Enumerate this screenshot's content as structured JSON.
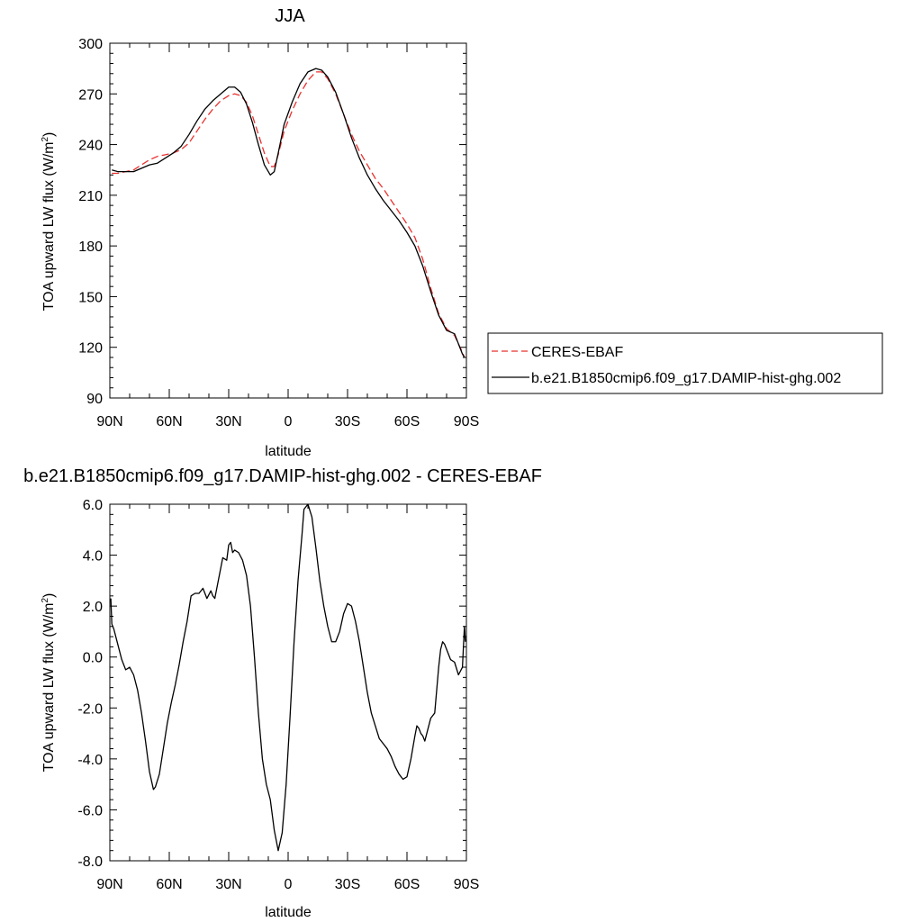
{
  "chart_data": [
    {
      "type": "line",
      "title": "JJA",
      "xlabel": "latitude",
      "ylabel_main": "TOA upward LW flux (W/m",
      "ylabel_sup": "2",
      "ylabel_tail": ")",
      "xlim": [
        -90,
        90
      ],
      "ylim": [
        90,
        300
      ],
      "xticks": [
        -90,
        -60,
        -30,
        0,
        30,
        60,
        90
      ],
      "xtick_labels": [
        "90N",
        "60N",
        "30N",
        "0",
        "30S",
        "60S",
        "90S"
      ],
      "yticks": [
        90,
        120,
        150,
        180,
        210,
        240,
        270,
        300
      ],
      "ytick_labels": [
        "90",
        "120",
        "150",
        "180",
        "210",
        "240",
        "270",
        "300"
      ],
      "grid": false,
      "legend_position": "right",
      "series": [
        {
          "name": "CERES-EBAF",
          "color": "#e8312f",
          "dash": "dashed",
          "x": [
            -89,
            -86,
            -82,
            -78,
            -74,
            -70,
            -66,
            -62,
            -58,
            -54,
            -50,
            -46,
            -42,
            -38,
            -34,
            -30,
            -27,
            -24,
            -21,
            -18,
            -15,
            -12,
            -9,
            -7,
            -5,
            -2,
            2,
            6,
            10,
            14,
            17,
            20,
            24,
            28,
            32,
            36,
            40,
            44,
            48,
            52,
            56,
            60,
            64,
            68,
            72,
            76,
            80,
            84,
            88,
            89
          ],
          "y": [
            223,
            223,
            224,
            225,
            228,
            231,
            233,
            234,
            235,
            237,
            241,
            248,
            255,
            261,
            266,
            269,
            270,
            269,
            265,
            257,
            246,
            235,
            227,
            227,
            234,
            248,
            260,
            270,
            278,
            283,
            283,
            279,
            270,
            258,
            246,
            236,
            228,
            220,
            214,
            207,
            200,
            193,
            185,
            172,
            155,
            140,
            131,
            127,
            117,
            114
          ]
        },
        {
          "name": "b.e21.B1850cmip6.f09_g17.DAMIP-hist-ghg.002",
          "color": "#000000",
          "dash": "solid",
          "x": [
            -89,
            -86,
            -82,
            -78,
            -74,
            -70,
            -66,
            -62,
            -58,
            -54,
            -50,
            -46,
            -42,
            -38,
            -34,
            -30,
            -27,
            -24,
            -21,
            -18,
            -15,
            -12,
            -9,
            -7,
            -5,
            -2,
            2,
            6,
            10,
            14,
            17,
            20,
            24,
            28,
            32,
            36,
            40,
            44,
            48,
            52,
            56,
            60,
            64,
            68,
            72,
            76,
            80,
            84,
            88,
            89
          ],
          "y": [
            225,
            224,
            224,
            224,
            226,
            228,
            229,
            232,
            235,
            239,
            246,
            254,
            261,
            266,
            270,
            274,
            274,
            271,
            264,
            253,
            240,
            228,
            222,
            224,
            235,
            252,
            265,
            276,
            283,
            285,
            284,
            280,
            271,
            258,
            244,
            232,
            222,
            214,
            207,
            201,
            195,
            188,
            180,
            168,
            153,
            139,
            130,
            128,
            116,
            114
          ]
        }
      ]
    },
    {
      "type": "line",
      "title": "b.e21.B1850cmip6.f09_g17.DAMIP-hist-ghg.002 - CERES-EBAF",
      "xlabel": "latitude",
      "ylabel_main": "TOA upward LW flux (W/m",
      "ylabel_sup": "2",
      "ylabel_tail": ")",
      "xlim": [
        -90,
        90
      ],
      "ylim": [
        -8,
        6
      ],
      "xticks": [
        -90,
        -60,
        -30,
        0,
        30,
        60,
        90
      ],
      "xtick_labels": [
        "90N",
        "60N",
        "30N",
        "0",
        "30S",
        "60S",
        "90S"
      ],
      "yticks": [
        -8,
        -6,
        -4,
        -2,
        0,
        2,
        4,
        6
      ],
      "ytick_labels": [
        "-8.0",
        "-6.0",
        "-4.0",
        "-2.0",
        "0.0",
        "2.0",
        "4.0",
        "6.0"
      ],
      "grid": false,
      "series": [
        {
          "color": "#000000",
          "dash": "solid",
          "x": [
            -89.5,
            -89,
            -88,
            -86,
            -84,
            -82,
            -80,
            -78,
            -76,
            -74,
            -72,
            -70,
            -68,
            -67,
            -65,
            -63,
            -61,
            -59,
            -57,
            -55,
            -53,
            -51,
            -49,
            -47,
            -45,
            -43,
            -41,
            -39,
            -38,
            -37,
            -35,
            -33,
            -31,
            -30,
            -29,
            -28,
            -27,
            -25,
            -23,
            -21,
            -19,
            -17,
            -15,
            -13,
            -11,
            -9,
            -7,
            -5,
            -3,
            -1,
            1,
            3,
            5,
            7,
            8,
            10,
            12,
            14,
            16,
            18,
            20,
            22,
            24,
            26,
            28,
            30,
            32,
            34,
            36,
            38,
            40,
            42,
            44,
            46,
            48,
            50,
            52,
            54,
            56,
            58,
            60,
            62,
            64,
            65,
            66,
            67,
            68,
            69,
            70,
            72,
            74,
            76,
            77,
            78,
            79,
            80,
            82,
            84,
            86,
            88,
            89,
            89.5
          ],
          "y": [
            2.3,
            1.3,
            1.1,
            0.5,
            -0.1,
            -0.5,
            -0.4,
            -0.7,
            -1.3,
            -2.2,
            -3.3,
            -4.5,
            -5.2,
            -5.1,
            -4.6,
            -3.6,
            -2.6,
            -1.8,
            -1.1,
            -0.3,
            0.6,
            1.4,
            2.4,
            2.5,
            2.5,
            2.7,
            2.3,
            2.6,
            2.4,
            2.3,
            3.1,
            3.9,
            3.8,
            4.4,
            4.5,
            4.1,
            4.2,
            4.1,
            3.8,
            3.2,
            2.0,
            0.0,
            -2.2,
            -4.0,
            -5.0,
            -5.6,
            -6.8,
            -7.6,
            -6.9,
            -5.0,
            -2.3,
            0.6,
            3.0,
            4.8,
            5.8,
            6.0,
            5.5,
            4.3,
            3.0,
            2.0,
            1.2,
            0.6,
            0.6,
            1.0,
            1.7,
            2.1,
            2.0,
            1.4,
            0.6,
            -0.4,
            -1.4,
            -2.2,
            -2.7,
            -3.2,
            -3.4,
            -3.6,
            -3.9,
            -4.3,
            -4.6,
            -4.8,
            -4.7,
            -4.0,
            -3.1,
            -2.7,
            -2.8,
            -3.0,
            -3.1,
            -3.3,
            -3.0,
            -2.4,
            -2.2,
            -0.4,
            0.3,
            0.6,
            0.5,
            0.3,
            -0.1,
            -0.2,
            -0.7,
            -0.4,
            1.2,
            0.6
          ]
        }
      ]
    }
  ]
}
